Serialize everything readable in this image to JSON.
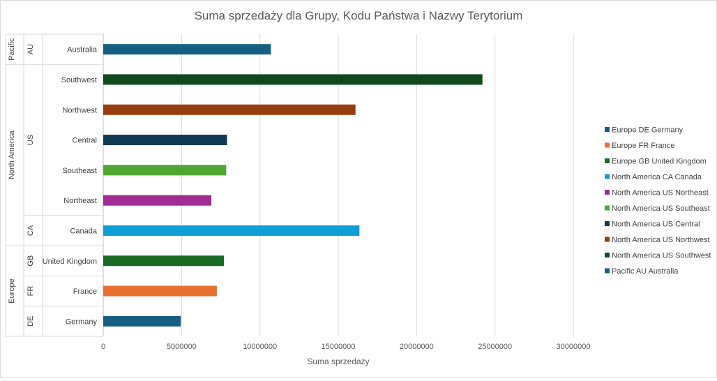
{
  "chart_data": {
    "type": "bar",
    "orientation": "horizontal",
    "title": "Suma sprzedaży dla Grupy, Kodu Państwa i Nazwy Terytorium",
    "xlabel": "Suma sprzedaży",
    "ylabel": "",
    "xlim": [
      0,
      30000000
    ],
    "xticks": [
      "0",
      "5000000",
      "10000000",
      "15000000",
      "20000000",
      "25000000",
      "30000000"
    ],
    "grid": true,
    "legend_position": "right",
    "groups": [
      {
        "name": "Pacific",
        "countries": [
          {
            "code": "AU",
            "territories": [
              "Australia"
            ]
          }
        ]
      },
      {
        "name": "North America",
        "countries": [
          {
            "code": "US",
            "territories": [
              "Southwest",
              "Northwest",
              "Central",
              "Southeast",
              "Northeast"
            ]
          },
          {
            "code": "CA",
            "territories": [
              "Canada"
            ]
          }
        ]
      },
      {
        "name": "Europe",
        "countries": [
          {
            "code": "GB",
            "territories": [
              "United Kingdom"
            ]
          },
          {
            "code": "FR",
            "territories": [
              "France"
            ]
          },
          {
            "code": "DE",
            "territories": [
              "Germany"
            ]
          }
        ]
      }
    ],
    "bars": [
      {
        "category": "Australia",
        "value": 10700000,
        "color": "#156082"
      },
      {
        "category": "Southwest",
        "value": 24200000,
        "color": "#0e4a1b"
      },
      {
        "category": "Northwest",
        "value": 16100000,
        "color": "#9a3b0d"
      },
      {
        "category": "Central",
        "value": 7900000,
        "color": "#0d3a52"
      },
      {
        "category": "Southeast",
        "value": 7850000,
        "color": "#4ea72e"
      },
      {
        "category": "Northeast",
        "value": 6900000,
        "color": "#a02b93"
      },
      {
        "category": "Canada",
        "value": 16350000,
        "color": "#0f9ed5"
      },
      {
        "category": "United Kingdom",
        "value": 7700000,
        "color": "#196b24"
      },
      {
        "category": "France",
        "value": 7250000,
        "color": "#e97132"
      },
      {
        "category": "Germany",
        "value": 4950000,
        "color": "#156082"
      }
    ],
    "legend": [
      {
        "label": "Europe DE Germany",
        "color": "#156082"
      },
      {
        "label": "Europe FR France",
        "color": "#e97132"
      },
      {
        "label": "Europe GB United Kingdom",
        "color": "#196b24"
      },
      {
        "label": "North America CA Canada",
        "color": "#0f9ed5"
      },
      {
        "label": "North America US Northeast",
        "color": "#a02b93"
      },
      {
        "label": "North America US Southeast",
        "color": "#4ea72e"
      },
      {
        "label": "North America US Central",
        "color": "#0d3a52"
      },
      {
        "label": "North America US Northwest",
        "color": "#9a3b0d"
      },
      {
        "label": "North America US Southwest",
        "color": "#0e4a1b"
      },
      {
        "label": "Pacific AU Australia",
        "color": "#156082"
      }
    ]
  }
}
